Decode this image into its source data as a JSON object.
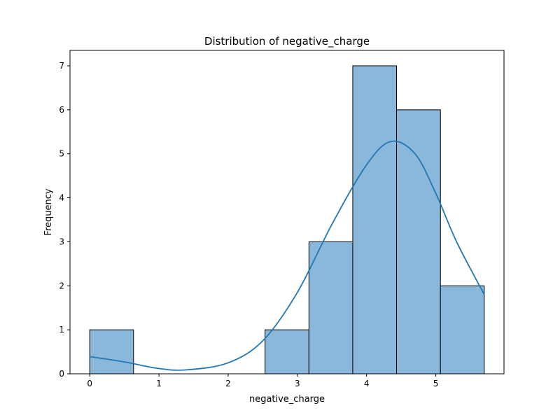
{
  "chart_data": {
    "type": "bar",
    "title": "Distribution of negative_charge",
    "xlabel": "negative_charge",
    "ylabel": "Frequency",
    "xlim": [
      -0.285,
      5.985
    ],
    "ylim": [
      0,
      7.35
    ],
    "xticks": [
      0,
      1,
      2,
      3,
      4,
      5
    ],
    "yticks": [
      0,
      1,
      2,
      3,
      4,
      5,
      6,
      7
    ],
    "bins": [
      {
        "x0": 0.0,
        "x1": 0.633,
        "count": 1
      },
      {
        "x0": 0.633,
        "x1": 1.267,
        "count": 0
      },
      {
        "x0": 1.267,
        "x1": 1.9,
        "count": 0
      },
      {
        "x0": 1.9,
        "x1": 2.533,
        "count": 0
      },
      {
        "x0": 2.533,
        "x1": 3.167,
        "count": 1
      },
      {
        "x0": 3.167,
        "x1": 3.8,
        "count": 3
      },
      {
        "x0": 3.8,
        "x1": 4.433,
        "count": 7
      },
      {
        "x0": 4.433,
        "x1": 5.067,
        "count": 6
      },
      {
        "x0": 5.067,
        "x1": 5.7,
        "count": 2
      }
    ],
    "kde": {
      "x": [
        0.0,
        0.5,
        1.0,
        1.4,
        2.0,
        2.5,
        3.0,
        3.5,
        4.0,
        4.35,
        4.7,
        5.0,
        5.3,
        5.7
      ],
      "y": [
        0.39,
        0.27,
        0.12,
        0.09,
        0.25,
        0.75,
        1.85,
        3.4,
        4.75,
        5.28,
        5.0,
        4.1,
        3.0,
        1.8
      ]
    },
    "colors": {
      "bar_fill": "#8ab8db",
      "bar_edge": "#000000",
      "kde_line": "#1f77b4"
    },
    "grid": false
  }
}
